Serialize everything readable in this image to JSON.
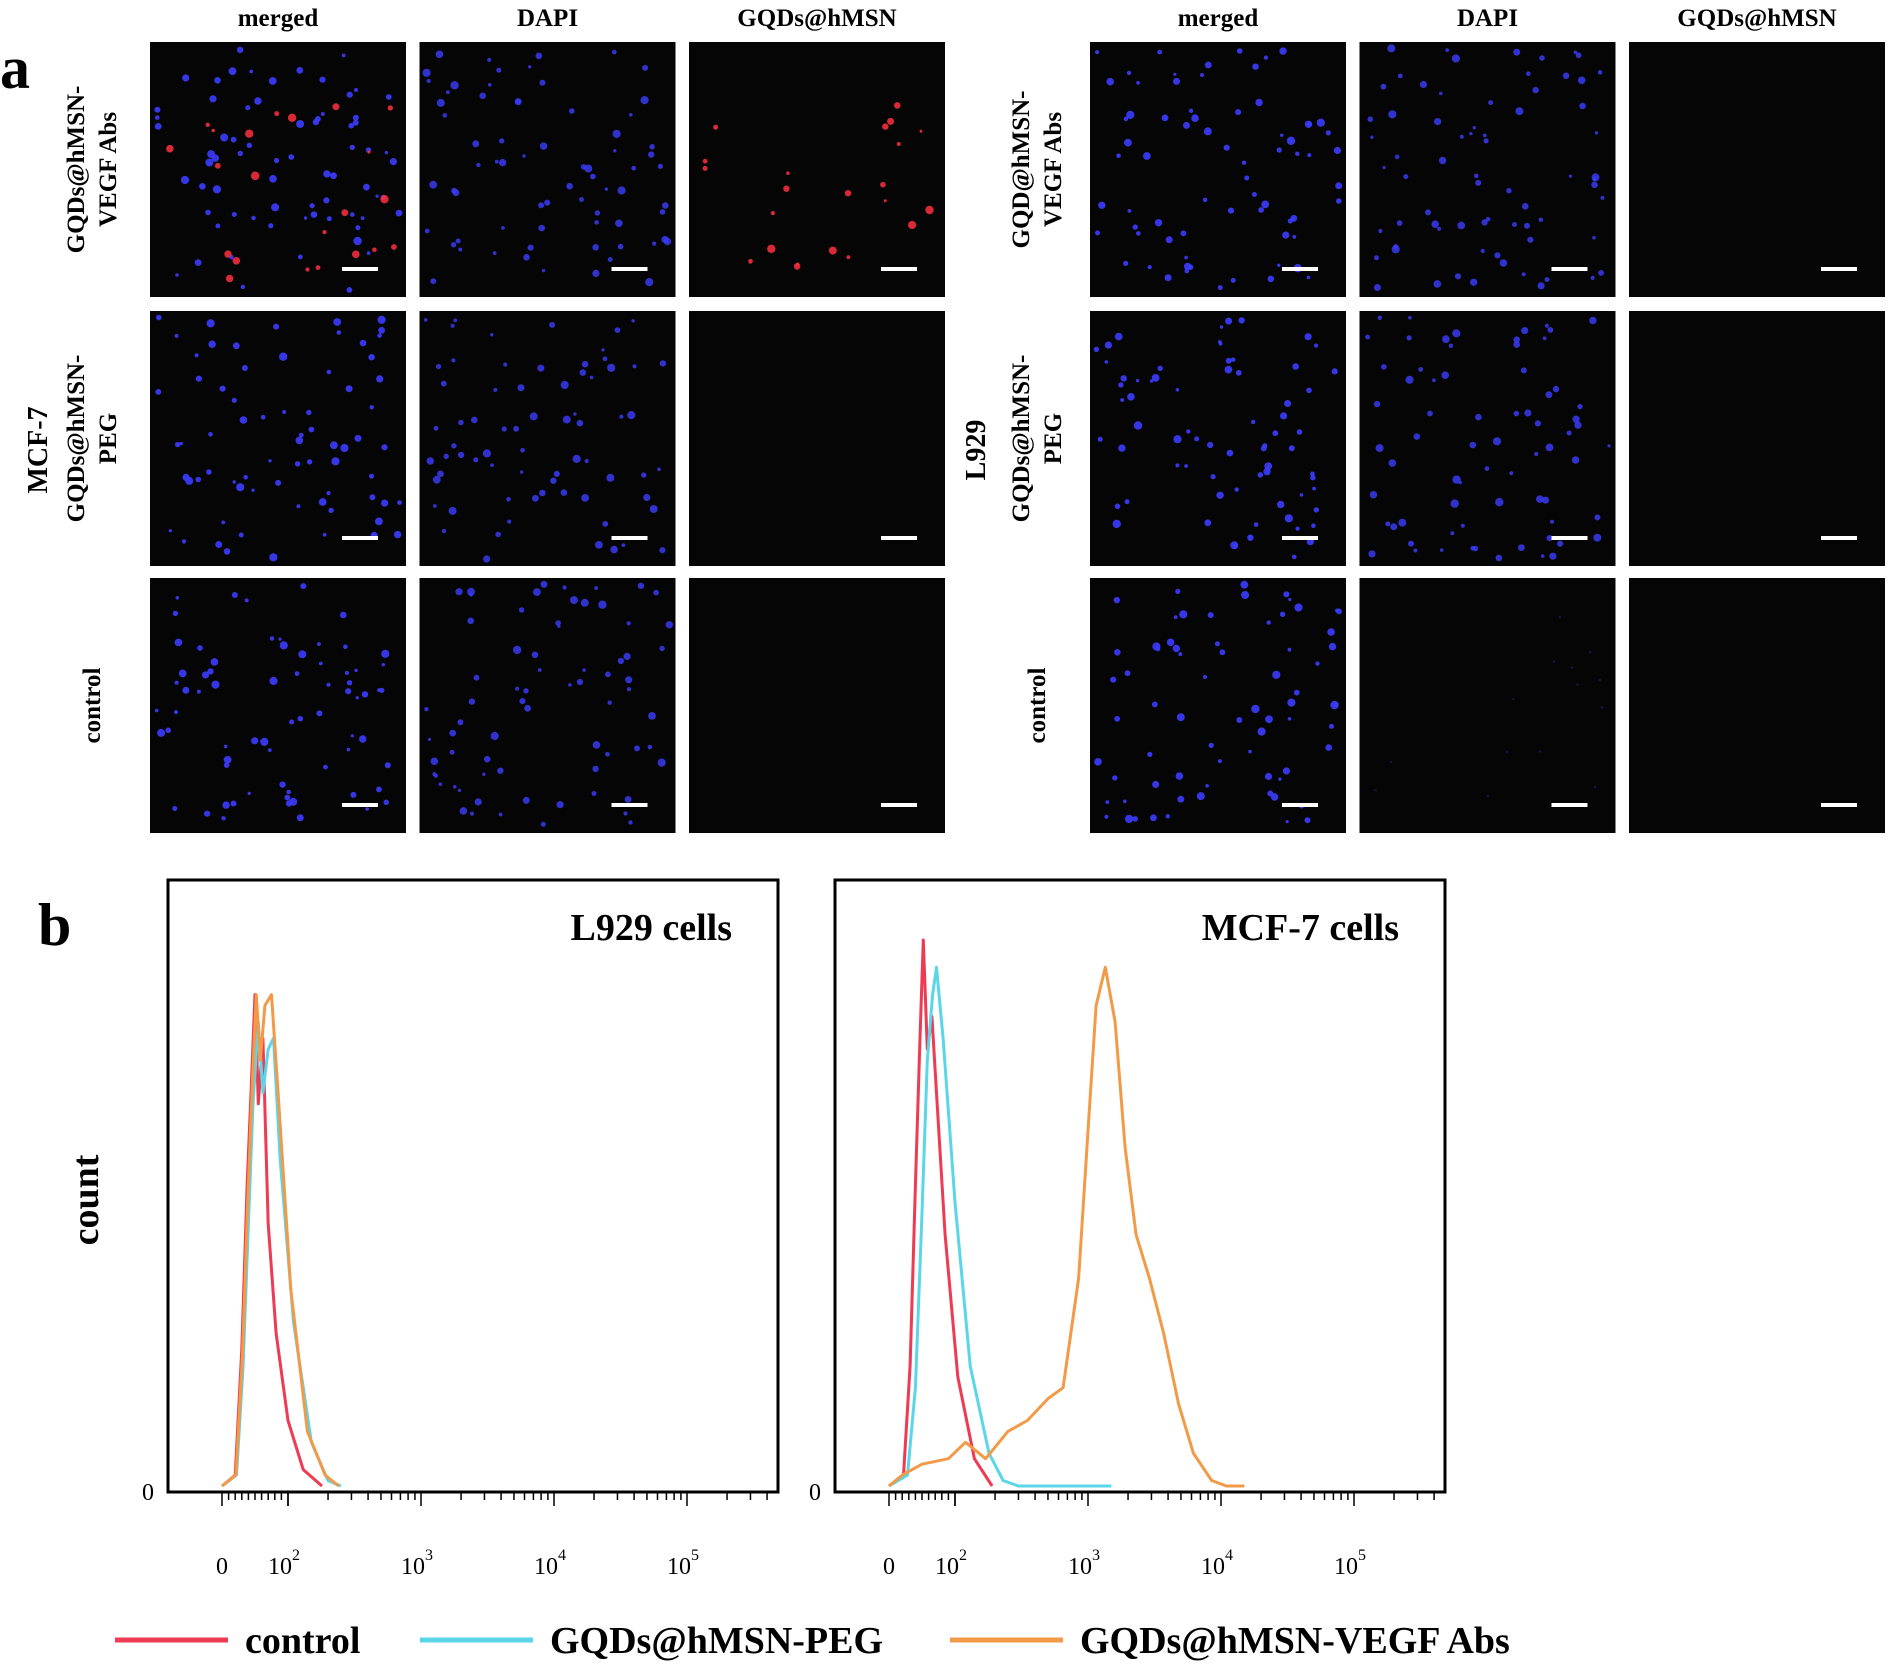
{
  "panel_a": {
    "letter": "a",
    "column_headers": [
      "merged",
      "DAPI",
      "GQDs@hMSN"
    ],
    "groups": [
      {
        "cell_line": "MCF-7",
        "rows": [
          {
            "label_lines": [
              "GQDs@hMSN-",
              "VEGF Abs"
            ],
            "red_signal": true,
            "dapi_visible": true
          },
          {
            "label_lines": [
              "GQDs@hMSN-",
              "PEG"
            ],
            "red_signal": false,
            "dapi_visible": true
          },
          {
            "label_lines": [
              "control"
            ],
            "red_signal": false,
            "dapi_visible": true
          }
        ]
      },
      {
        "cell_line": "L929",
        "rows": [
          {
            "label_lines": [
              "GQD@hMSN-",
              "VEGF Abs"
            ],
            "red_signal": false,
            "dapi_visible": true
          },
          {
            "label_lines": [
              "GQDs@hMSN-",
              "PEG"
            ],
            "red_signal": false,
            "dapi_visible": true
          },
          {
            "label_lines": [
              "control"
            ],
            "red_signal": false,
            "dapi_visible": false
          }
        ]
      }
    ],
    "colors": {
      "nucleus": "#3c3cff",
      "signal": "#ff3040",
      "background": "#050505",
      "scale_bar": "#ffffff"
    }
  },
  "panel_b": {
    "letter": "b",
    "ylabel": "count",
    "legend": [
      {
        "label": "control",
        "color": "#ee3a52"
      },
      {
        "label": "GQDs@hMSN-PEG",
        "color": "#5ad6e8"
      },
      {
        "label": "GQDs@hMSN-VEGF Abs",
        "color": "#f29a48"
      }
    ]
  },
  "chart_data": [
    {
      "type": "line",
      "title": "L929 cells",
      "xlabel": "",
      "ylabel": "count",
      "x_scale": "log",
      "x_ticks": [
        "0",
        "10^2",
        "10^3",
        "10^4",
        "10^5"
      ],
      "y_ticks": [
        "0"
      ],
      "ylim": [
        0,
        100
      ],
      "series": [
        {
          "name": "control",
          "color": "#ee3a52",
          "points": [
            [
              0,
              0
            ],
            [
              20,
              2
            ],
            [
              30,
              25
            ],
            [
              38,
              55
            ],
            [
              44,
              72
            ],
            [
              50,
              90
            ],
            [
              55,
              70
            ],
            [
              62,
              82
            ],
            [
              70,
              48
            ],
            [
              82,
              28
            ],
            [
              100,
              12
            ],
            [
              130,
              3
            ],
            [
              180,
              0
            ]
          ]
        },
        {
          "name": "GQDs@hMSN-PEG",
          "color": "#5ad6e8",
          "points": [
            [
              0,
              0
            ],
            [
              22,
              2
            ],
            [
              32,
              22
            ],
            [
              40,
              48
            ],
            [
              47,
              70
            ],
            [
              55,
              85
            ],
            [
              62,
              72
            ],
            [
              70,
              80
            ],
            [
              78,
              82
            ],
            [
              88,
              60
            ],
            [
              110,
              30
            ],
            [
              150,
              8
            ],
            [
              200,
              1
            ],
            [
              250,
              0
            ]
          ]
        },
        {
          "name": "GQDs@hMSN-VEGF Abs",
          "color": "#f29a48",
          "points": [
            [
              0,
              0
            ],
            [
              21,
              2
            ],
            [
              31,
              24
            ],
            [
              39,
              52
            ],
            [
              46,
              74
            ],
            [
              52,
              90
            ],
            [
              58,
              78
            ],
            [
              65,
              88
            ],
            [
              75,
              90
            ],
            [
              85,
              72
            ],
            [
              105,
              36
            ],
            [
              140,
              10
            ],
            [
              190,
              2
            ],
            [
              240,
              0
            ]
          ]
        }
      ]
    },
    {
      "type": "line",
      "title": "MCF-7 cells",
      "xlabel": "",
      "ylabel": "count",
      "x_scale": "log",
      "x_ticks": [
        "0",
        "10^2",
        "10^3",
        "10^4",
        "10^5"
      ],
      "y_ticks": [
        "0"
      ],
      "ylim": [
        0,
        100
      ],
      "series": [
        {
          "name": "control",
          "color": "#ee3a52",
          "points": [
            [
              0,
              0
            ],
            [
              22,
              2
            ],
            [
              32,
              22
            ],
            [
              40,
              55
            ],
            [
              47,
              82
            ],
            [
              52,
              100
            ],
            [
              58,
              80
            ],
            [
              65,
              86
            ],
            [
              72,
              72
            ],
            [
              85,
              46
            ],
            [
              105,
              20
            ],
            [
              140,
              5
            ],
            [
              190,
              0
            ]
          ]
        },
        {
          "name": "GQDs@hMSN-PEG",
          "color": "#5ad6e8",
          "points": [
            [
              0,
              0
            ],
            [
              28,
              2
            ],
            [
              40,
              18
            ],
            [
              50,
              50
            ],
            [
              58,
              78
            ],
            [
              66,
              90
            ],
            [
              72,
              95
            ],
            [
              82,
              82
            ],
            [
              100,
              52
            ],
            [
              130,
              22
            ],
            [
              180,
              6
            ],
            [
              230,
              1
            ],
            [
              300,
              0
            ],
            [
              1500,
              0
            ]
          ]
        },
        {
          "name": "GQDs@hMSN-VEGF Abs",
          "color": "#f29a48",
          "points": [
            [
              0,
              0
            ],
            [
              20,
              2
            ],
            [
              50,
              4
            ],
            [
              90,
              5
            ],
            [
              120,
              8
            ],
            [
              170,
              5
            ],
            [
              250,
              10
            ],
            [
              350,
              12
            ],
            [
              500,
              16
            ],
            [
              650,
              18
            ],
            [
              850,
              38
            ],
            [
              1000,
              65
            ],
            [
              1150,
              88
            ],
            [
              1350,
              95
            ],
            [
              1600,
              85
            ],
            [
              1900,
              62
            ],
            [
              2300,
              46
            ],
            [
              2900,
              38
            ],
            [
              3700,
              28
            ],
            [
              4800,
              15
            ],
            [
              6200,
              6
            ],
            [
              8500,
              1
            ],
            [
              11000,
              0
            ],
            [
              15000,
              0
            ]
          ]
        }
      ]
    }
  ]
}
